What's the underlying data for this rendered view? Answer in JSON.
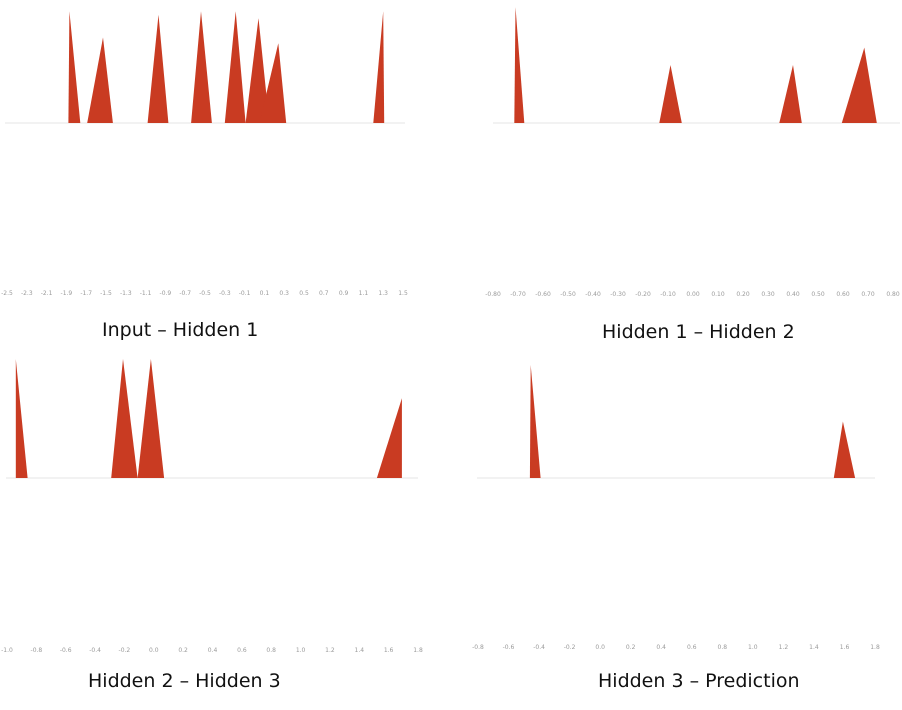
{
  "colors": {
    "peak": "#c93b22",
    "baseline": "#e6e6e6",
    "tick_text": "#9a9a9a"
  },
  "chart_data": [
    {
      "type": "area",
      "title": "Input – Hidden 1",
      "xlabel": "",
      "ylabel": "",
      "xlim": [
        -2.55,
        1.55
      ],
      "ylim": [
        0,
        1
      ],
      "tick_labels": [
        "-2.5",
        "-2.3",
        "-2.1",
        "-1.9",
        "-1.7",
        "-1.5",
        "-1.3",
        "-1.1",
        "-0.9",
        "-0.7",
        "-0.5",
        "-0.3",
        "-0.1",
        "0.1",
        "0.3",
        "0.5",
        "0.7",
        "0.9",
        "1.1",
        "1.3",
        "1.5"
      ],
      "peaks": [
        {
          "x0": -1.88,
          "x1": -1.76,
          "apex": -1.87,
          "height": 0.98
        },
        {
          "x0": -1.69,
          "x1": -1.43,
          "apex": -1.53,
          "height": 0.75
        },
        {
          "x0": -1.08,
          "x1": -0.87,
          "apex": -0.97,
          "height": 0.95
        },
        {
          "x0": -0.64,
          "x1": -0.43,
          "apex": -0.54,
          "height": 0.98
        },
        {
          "x0": -0.3,
          "x1": -0.09,
          "apex": -0.19,
          "height": 0.98
        },
        {
          "x0": -0.09,
          "x1": 0.15,
          "apex": 0.04,
          "height": 0.92
        },
        {
          "x0": 0.05,
          "x1": 0.32,
          "apex": 0.24,
          "height": 0.7
        },
        {
          "x0": 1.2,
          "x1": 1.31,
          "apex": 1.3,
          "height": 0.98
        }
      ]
    },
    {
      "type": "area",
      "title": "Hidden 1 – Hidden 2",
      "xlabel": "",
      "ylabel": "",
      "xlim": [
        -0.82,
        0.82
      ],
      "ylim": [
        0,
        1
      ],
      "tick_labels": [
        "-0.80",
        "-0.70",
        "-0.60",
        "-0.50",
        "-0.40",
        "-0.30",
        "-0.20",
        "-0.10",
        "0.00",
        "0.10",
        "0.20",
        "0.30",
        "0.40",
        "0.50",
        "0.60",
        "0.70",
        "0.80"
      ],
      "peaks": [
        {
          "x0": -0.715,
          "x1": -0.675,
          "apex": -0.71,
          "height": 1.0
        },
        {
          "x0": -0.135,
          "x1": -0.045,
          "apex": -0.09,
          "height": 0.5
        },
        {
          "x0": 0.345,
          "x1": 0.435,
          "apex": 0.4,
          "height": 0.5
        },
        {
          "x0": 0.595,
          "x1": 0.735,
          "apex": 0.685,
          "height": 0.65
        }
      ]
    },
    {
      "type": "area",
      "title": "Hidden 2 – Hidden 3",
      "xlabel": "",
      "ylabel": "",
      "xlim": [
        -1.02,
        1.82
      ],
      "ylim": [
        0,
        1
      ],
      "tick_labels": [
        "-1.0",
        "-0.8",
        "-0.6",
        "-0.4",
        "-0.2",
        "0.0",
        "0.2",
        "0.4",
        "0.6",
        "0.8",
        "1.0",
        "1.2",
        "1.4",
        "1.6",
        "1.8"
      ],
      "peaks": [
        {
          "x0": -0.94,
          "x1": -0.86,
          "apex": -0.94,
          "height": 1.0
        },
        {
          "x0": -0.29,
          "x1": -0.11,
          "apex": -0.21,
          "height": 1.0
        },
        {
          "x0": -0.11,
          "x1": 0.07,
          "apex": -0.02,
          "height": 1.0
        },
        {
          "x0": 1.52,
          "x1": 1.69,
          "apex": 1.69,
          "height": 0.67
        }
      ]
    },
    {
      "type": "area",
      "title": "Hidden 3 – Prediction",
      "xlabel": "",
      "ylabel": "",
      "xlim": [
        -0.82,
        1.82
      ],
      "ylim": [
        0,
        1
      ],
      "tick_labels": [
        "-0.8",
        "-0.6",
        "-0.4",
        "-0.2",
        "0.0",
        "0.2",
        "0.4",
        "0.6",
        "0.8",
        "1.0",
        "1.2",
        "1.4",
        "1.6",
        "1.8"
      ],
      "peaks": [
        {
          "x0": -0.46,
          "x1": -0.39,
          "apex": -0.455,
          "height": 1.0
        },
        {
          "x0": 1.53,
          "x1": 1.67,
          "apex": 1.59,
          "height": 0.5
        }
      ]
    }
  ]
}
